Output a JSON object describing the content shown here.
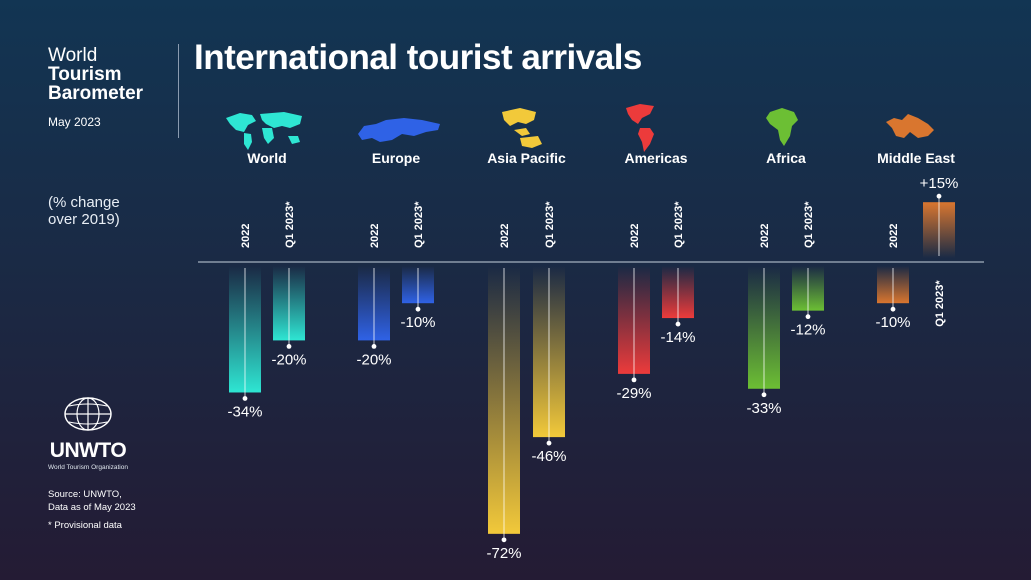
{
  "brand": {
    "line1": "World",
    "line2": "Tourism",
    "line3": "Barometer",
    "date": "May 2023"
  },
  "title": "International tourist arrivals",
  "units_note": {
    "line1": "(% change",
    "line2": "over 2019)"
  },
  "logo": {
    "name": "UNWTO",
    "subtitle": "World Tourism Organization"
  },
  "source": {
    "line1": "Source: UNWTO,",
    "line2": "Data as of May 2023"
  },
  "footnote": "*  Provisional data",
  "icons": [
    "world-map-icon",
    "europe-map-icon",
    "asia-pacific-map-icon",
    "americas-map-icon",
    "africa-map-icon",
    "middle-east-map-icon",
    "globe-icon"
  ],
  "chart_data": {
    "type": "bar",
    "categories": [
      "World",
      "Europe",
      "Asia Pacific",
      "Americas",
      "Africa",
      "Middle East"
    ],
    "series": [
      {
        "name": "2022",
        "values": [
          -34,
          -20,
          -72,
          -29,
          -33,
          -10
        ],
        "labels": [
          "-34%",
          "-20%",
          "-72%",
          "-29%",
          "-33%",
          "-10%"
        ]
      },
      {
        "name": "Q1 2023*",
        "values": [
          -20,
          -10,
          -46,
          -14,
          -12,
          15
        ],
        "labels": [
          "-20%",
          "-10%",
          "-46%",
          "-14%",
          "-12%",
          "+15%"
        ]
      }
    ],
    "colors": [
      "#2ee6d3",
      "#2f62e6",
      "#f2c93a",
      "#ec3b3b",
      "#6cbf34",
      "#d9762f"
    ],
    "ylabel": "(% change over 2019)",
    "ylim": [
      -72,
      15
    ]
  }
}
